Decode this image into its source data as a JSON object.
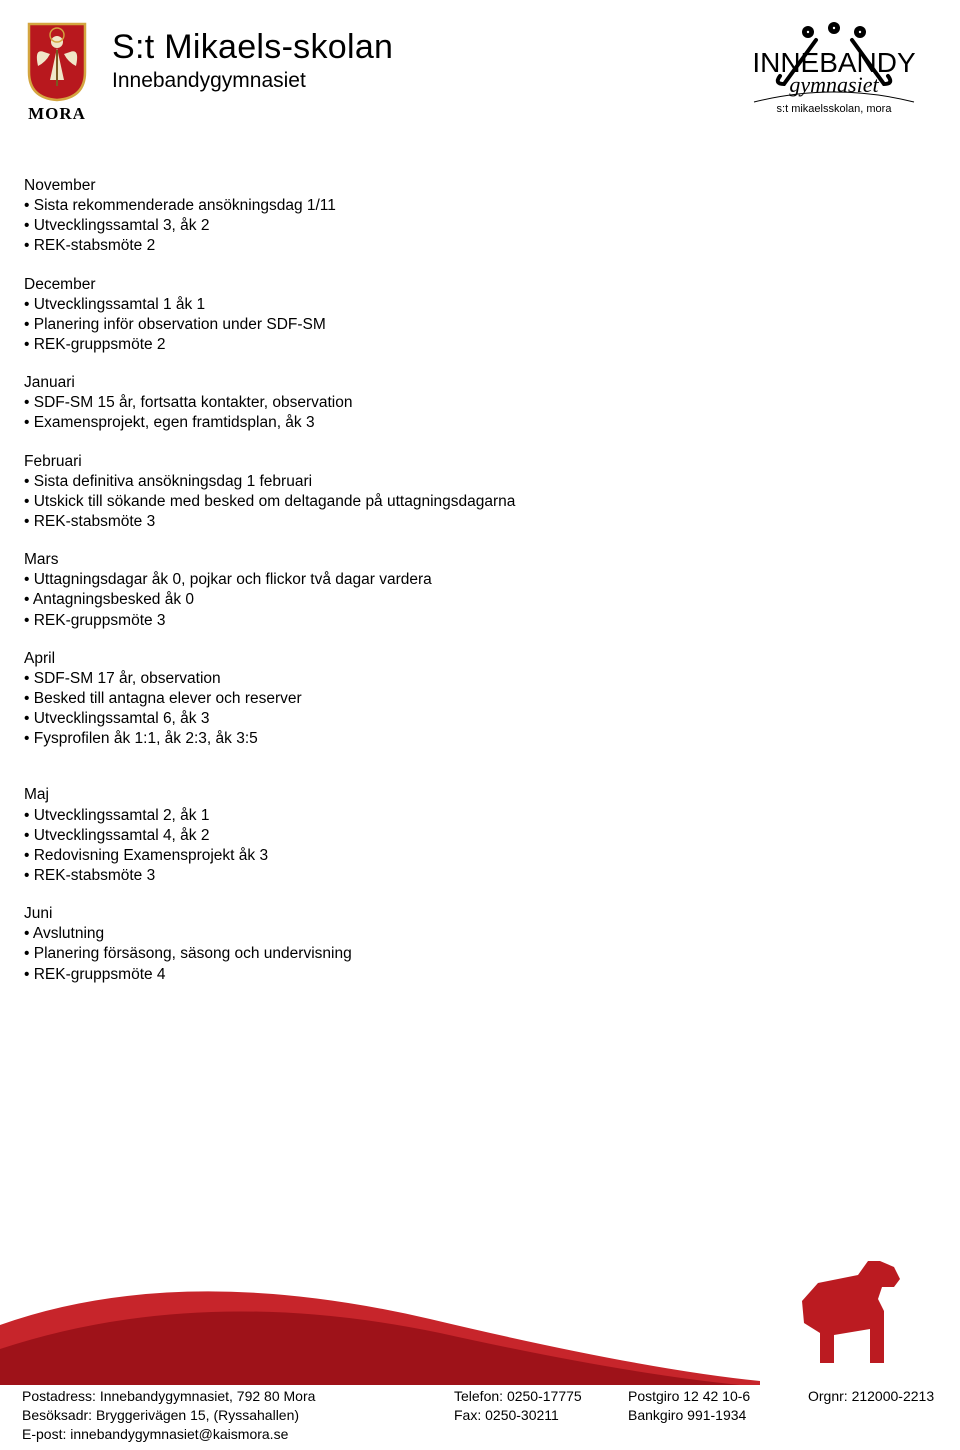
{
  "colors": {
    "mora_red": "#b8181e",
    "crest_gold": "#d4a640",
    "text": "#000000",
    "bg": "#ffffff",
    "horse": "#bb1b21",
    "wave_dark": "#9e1219",
    "wave_light": "#c7252b"
  },
  "header": {
    "crest_label": "MORA",
    "school_main": "S:t Mikaels-skolan",
    "school_sub": "Innebandygymnasiet",
    "right_logo_top": "INNEBANDY",
    "right_logo_mid": "gymnasiet",
    "right_logo_bottom": "s:t mikaelsskolan, mora"
  },
  "months": [
    {
      "name": "November",
      "items": [
        "Sista rekommenderade ansökningsdag 1/11",
        "Utvecklingssamtal 3, åk 2",
        "REK-stabsmöte 2"
      ]
    },
    {
      "name": "December",
      "items": [
        "Utvecklingssamtal 1 åk 1",
        "Planering inför observation under SDF-SM",
        "REK-gruppsmöte 2"
      ]
    },
    {
      "name": "Januari",
      "items": [
        "SDF-SM 15 år, fortsatta kontakter, observation",
        "Examensprojekt, egen framtidsplan, åk 3"
      ]
    },
    {
      "name": "Februari",
      "items": [
        "Sista definitiva ansökningsdag 1 februari",
        "Utskick till sökande med besked om deltagande på uttagningsdagarna",
        "REK-stabsmöte 3"
      ]
    },
    {
      "name": "Mars",
      "items": [
        "Uttagningsdagar åk 0, pojkar och flickor två dagar vardera",
        "Antagningsbesked åk 0",
        "REK-gruppsmöte 3"
      ]
    },
    {
      "name": "April",
      "items": [
        "SDF-SM 17 år, observation",
        "Besked till antagna elever och reserver",
        "Utvecklingssamtal 6, åk 3",
        "Fysprofilen åk 1:1, åk 2:3, åk 3:5"
      ]
    }
  ],
  "months2": [
    {
      "name": "Maj",
      "items": [
        "Utvecklingssamtal 2, åk 1",
        "Utvecklingssamtal 4, åk 2",
        "Redovisning Examensprojekt åk 3",
        "REK-stabsmöte 3"
      ]
    },
    {
      "name": "Juni",
      "items": [
        "Avslutning",
        "Planering försäsong, säsong och undervisning",
        "REK-gruppsmöte 4"
      ]
    }
  ],
  "footer": {
    "post_label": "Postadress:",
    "post_value": "Innebandygymnasiet, 792 80 Mora",
    "visit_label": "Besöksadr:",
    "visit_value": "Bryggerivägen 15, (Ryssahallen)",
    "email_label": "E-post:",
    "email_value": "innebandygymnasiet@kaismora.se",
    "tel_label": "Telefon:",
    "tel_value": "0250-17775",
    "fax_label": "Fax:",
    "fax_value": "0250-30211",
    "postgiro_label": "Postgiro",
    "postgiro_value": "12 42 10-6",
    "bankgiro_label": "Bankgiro",
    "bankgiro_value": "991-1934",
    "org_label": "Orgnr:",
    "org_value": "212000-2213"
  }
}
